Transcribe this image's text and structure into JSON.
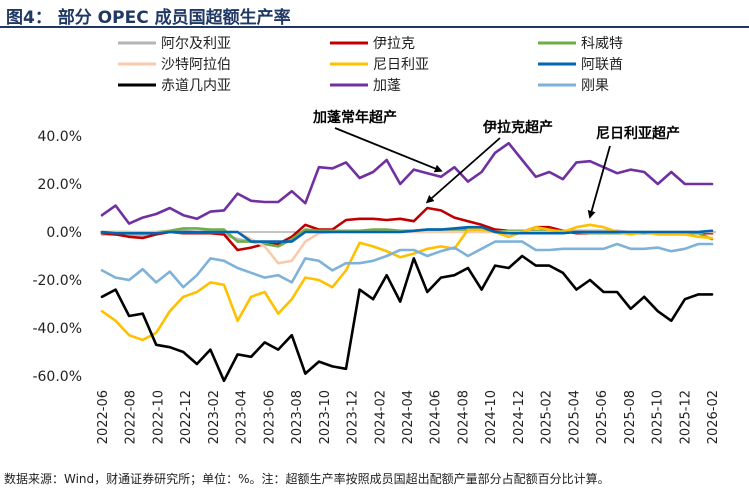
{
  "figure": {
    "title": "图4： 部分 OPEC 成员国超额生产率",
    "source_note": "数据来源：Wind，财通证券研究所；单位：%。注：超额生产率按照成员国超出配额产量部分占配额百分比计算。"
  },
  "chart_data": {
    "type": "line",
    "ylim": [
      -60,
      40
    ],
    "yticks": [
      40,
      20,
      0,
      -20,
      -40,
      -60
    ],
    "ytick_labels": [
      "40.0%",
      "20.0%",
      "0.0%",
      "-20.0%",
      "-40.0%",
      "-60.0%"
    ],
    "xtick_labels": [
      "2022-06",
      "2022-08",
      "2022-10",
      "2022-12",
      "2023-02",
      "2023-04",
      "2023-06",
      "2023-08",
      "2023-10",
      "2023-12",
      "2024-02",
      "2024-04",
      "2024-06",
      "2024-08",
      "2024-10",
      "2024-12",
      "2025-02",
      "2025-04",
      "2025-06",
      "2025-08",
      "2025-10",
      "2025-12",
      "2026-02"
    ],
    "grid": false,
    "legend_placement": "top",
    "series": [
      {
        "name": "阿尔及利亚",
        "color": "#b4b4b4",
        "values": [
          -1,
          -1,
          -1.5,
          -1.5,
          -1,
          0,
          0.5,
          0,
          0,
          -1,
          -3,
          -4,
          -5,
          -6,
          -3,
          1,
          0.5,
          0.5,
          0.5,
          0.5,
          0.5,
          0.5,
          0.5,
          0.5,
          0.5,
          0.5,
          0.5,
          0.5,
          0.5,
          0.5,
          0.5,
          0.5,
          0.5,
          0.5,
          0.5,
          0.5,
          0.5,
          0.5,
          0.5,
          0,
          0,
          0,
          0,
          0,
          0,
          0.5
        ]
      },
      {
        "name": "伊拉克",
        "color": "#c00000",
        "values": [
          -0.5,
          -1,
          -2,
          -2.5,
          -1,
          0,
          -0.5,
          -0.5,
          -0.5,
          -1,
          -7.5,
          -6.5,
          -5,
          -5,
          -2,
          3,
          1,
          1,
          5,
          5.5,
          5.5,
          5,
          5.5,
          4.5,
          10,
          9,
          6,
          4.5,
          3,
          1,
          0.5,
          0,
          2,
          2,
          0.5,
          -0.5,
          -0.5,
          -0.5,
          -0.5,
          -0.5,
          -0.5,
          -0.5,
          -0.5,
          -0.5,
          -0.5,
          -0.5
        ]
      },
      {
        "name": "科威特",
        "color": "#70ad47",
        "values": [
          0,
          0,
          0,
          -0.5,
          0,
          0.5,
          1.5,
          1.5,
          1,
          1,
          -4,
          -4,
          -5,
          -6,
          -3,
          1,
          0.5,
          0.5,
          0.5,
          0.5,
          1,
          1,
          0.5,
          0.5,
          1,
          1,
          1,
          1,
          1,
          0,
          0.5,
          0.5,
          0.5,
          0.5,
          0.5,
          0,
          -0.5,
          -0.5,
          -0.5,
          -0.5,
          -0.5,
          -0.5,
          -0.5,
          -0.5,
          -0.5,
          -3
        ]
      },
      {
        "name": "沙特阿拉伯",
        "color": "#f8cbad",
        "values": [
          0,
          0,
          0,
          0,
          0,
          0,
          0,
          0,
          0,
          0,
          0,
          -3,
          -6,
          -13,
          -12,
          -4,
          -0.5,
          0,
          0,
          0,
          0,
          0,
          0,
          0,
          0,
          0,
          0,
          0,
          0,
          0,
          0,
          0,
          0,
          0,
          0,
          0,
          0,
          0,
          0,
          0,
          0,
          0,
          0,
          0,
          0,
          0
        ]
      },
      {
        "name": "尼日利亚",
        "color": "#ffc000",
        "values": [
          -33,
          -37,
          -43,
          -45,
          -42,
          -33,
          -27,
          -25,
          -21,
          -22,
          -37,
          -27,
          -25,
          -34,
          -28,
          -19,
          -20,
          -23,
          -16,
          -4.5,
          -6,
          -8,
          -10.5,
          -9,
          -7,
          -6,
          -7,
          1,
          1,
          0,
          -2,
          0,
          2,
          1,
          0,
          2,
          3,
          2,
          0,
          -1,
          0,
          -1,
          -1,
          -1,
          -2,
          -2.5
        ]
      },
      {
        "name": "阿联酋",
        "color": "#0066b3",
        "values": [
          0,
          -0.5,
          -0.5,
          -0.5,
          -0.5,
          0,
          0,
          0,
          0,
          0,
          0,
          -4,
          -4,
          -4,
          -4,
          0,
          0,
          0,
          0,
          0,
          0,
          0,
          0,
          0.5,
          1,
          1,
          1.5,
          2,
          2,
          0,
          -0.5,
          -0.5,
          -0.5,
          -0.5,
          -0.5,
          0,
          0,
          0,
          0,
          0,
          0,
          0,
          0,
          0,
          0,
          0.5
        ]
      },
      {
        "name": "赤道几内亚",
        "color": "#000000",
        "values": [
          -27,
          -24,
          -35,
          -34,
          -47,
          -48,
          -50,
          -55,
          -49,
          -62,
          -51,
          -52,
          -46,
          -49,
          -43,
          -59,
          -54,
          -56,
          -57,
          -24,
          -28,
          -18,
          -29,
          -11,
          -25,
          -19,
          -18,
          -15,
          -24,
          -14,
          -15,
          -10,
          -14,
          -14,
          -17,
          -24,
          -20,
          -25,
          -25,
          -32,
          -27,
          -33,
          -37,
          -28,
          -26,
          -26
        ]
      },
      {
        "name": "加蓬",
        "color": "#7030a0",
        "values": [
          7,
          11,
          3.5,
          6,
          7.5,
          10,
          7,
          5.5,
          8.5,
          9,
          16,
          13,
          12.5,
          12.5,
          17,
          12,
          27,
          26.5,
          29,
          22.5,
          25,
          30,
          20,
          26,
          24.5,
          23,
          27,
          21,
          25,
          33,
          37,
          30,
          23,
          25,
          22,
          29,
          29.5,
          27,
          24.5,
          26,
          25,
          20,
          25,
          20,
          20,
          20
        ]
      },
      {
        "name": "刚果",
        "color": "#7fb2d9",
        "values": [
          -16,
          -19,
          -20,
          -15.5,
          -21,
          -16.5,
          -23,
          -18,
          -11,
          -12,
          -15,
          -17,
          -19,
          -18,
          -21,
          -11,
          -12,
          -16,
          -13,
          -13,
          -12,
          -10,
          -7.5,
          -7.5,
          -10,
          -8,
          -6.5,
          -10,
          -7,
          -4,
          -4,
          -4,
          -7.5,
          -7.5,
          -7,
          -7,
          -7,
          -7,
          -5,
          -7,
          -7,
          -6.5,
          -8,
          -7,
          -5,
          -5
        ]
      }
    ],
    "annotations": [
      {
        "text": "加蓬常年超产",
        "series": "加蓬",
        "point_index": 25
      },
      {
        "text": "伊拉克超产",
        "series": "伊拉克",
        "point_index": 24
      },
      {
        "text": "尼日利亚超产",
        "series": "尼日利亚",
        "point_index": 36
      }
    ]
  }
}
